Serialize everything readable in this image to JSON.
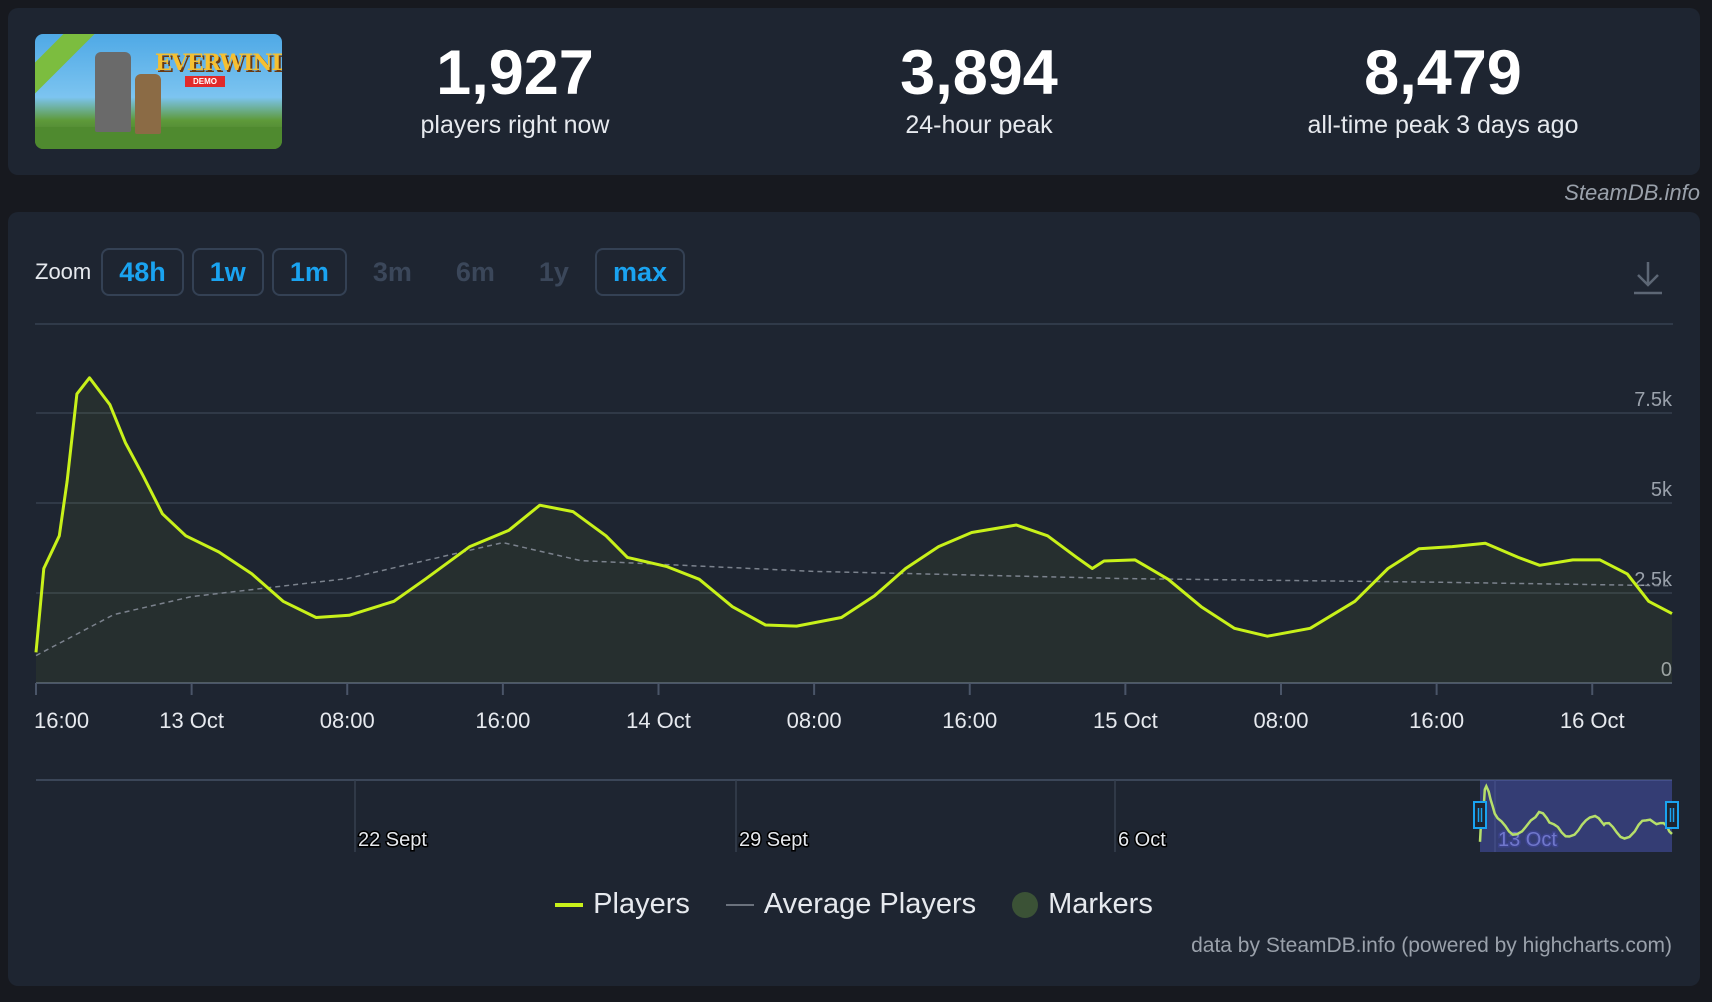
{
  "game": {
    "logo_text": "EVERWIND",
    "logo_badge": "DEMO"
  },
  "stats": [
    {
      "value": "1,927",
      "label": "players right now"
    },
    {
      "value": "3,894",
      "label": "24-hour peak"
    },
    {
      "value": "8,479",
      "label": "all-time peak 3 days ago"
    }
  ],
  "credit_top": "SteamDB.info",
  "zoom": {
    "label": "Zoom",
    "buttons": [
      {
        "label": "48h",
        "enabled": true
      },
      {
        "label": "1w",
        "enabled": true
      },
      {
        "label": "1m",
        "enabled": true
      },
      {
        "label": "3m",
        "enabled": false
      },
      {
        "label": "6m",
        "enabled": false
      },
      {
        "label": "1y",
        "enabled": false
      },
      {
        "label": "max",
        "enabled": true
      }
    ]
  },
  "icons": {
    "download": "download-icon"
  },
  "colors": {
    "players": "#c8f11a",
    "average": "#8a919c",
    "markers": "#3b5236",
    "accent": "#1aa3f0"
  },
  "chart_data": {
    "type": "line",
    "x_unit": "hours since 12 Oct 16:00",
    "xlim": [
      0,
      84.1
    ],
    "ylim": [
      0,
      8500
    ],
    "y_ticks": [
      {
        "v": 0,
        "label": "0"
      },
      {
        "v": 2500,
        "label": "2.5k"
      },
      {
        "v": 5000,
        "label": "5k"
      },
      {
        "v": 7500,
        "label": "7.5k"
      }
    ],
    "x_ticks": [
      {
        "h": 0,
        "label": "16:00"
      },
      {
        "h": 8,
        "label": "13 Oct"
      },
      {
        "h": 16,
        "label": "08:00"
      },
      {
        "h": 24,
        "label": "16:00"
      },
      {
        "h": 32,
        "label": "14 Oct"
      },
      {
        "h": 40,
        "label": "08:00"
      },
      {
        "h": 48,
        "label": "16:00"
      },
      {
        "h": 56,
        "label": "15 Oct"
      },
      {
        "h": 64,
        "label": "08:00"
      },
      {
        "h": 72,
        "label": "16:00"
      },
      {
        "h": 80,
        "label": "16 Oct"
      }
    ],
    "series": [
      {
        "name": "Players",
        "points": [
          [
            0,
            850
          ],
          [
            0.4,
            3180
          ],
          [
            1.2,
            4090
          ],
          [
            1.6,
            5600
          ],
          [
            2.1,
            8030
          ],
          [
            2.75,
            8479
          ],
          [
            3.8,
            7730
          ],
          [
            4.6,
            6670
          ],
          [
            5.5,
            5760
          ],
          [
            6.5,
            4700
          ],
          [
            7.7,
            4090
          ],
          [
            9.4,
            3640
          ],
          [
            11.1,
            3030
          ],
          [
            12.7,
            2270
          ],
          [
            14.4,
            1820
          ],
          [
            16.1,
            1880
          ],
          [
            18.4,
            2270
          ],
          [
            20,
            2880
          ],
          [
            22.3,
            3790
          ],
          [
            24.3,
            4240
          ],
          [
            25.9,
            4940
          ],
          [
            27.6,
            4760
          ],
          [
            29.3,
            4090
          ],
          [
            30.4,
            3490
          ],
          [
            32.4,
            3240
          ],
          [
            34.1,
            2880
          ],
          [
            35.8,
            2120
          ],
          [
            37.5,
            1610
          ],
          [
            39.1,
            1580
          ],
          [
            41.4,
            1820
          ],
          [
            43.1,
            2420
          ],
          [
            44.7,
            3180
          ],
          [
            46.4,
            3790
          ],
          [
            48.1,
            4180
          ],
          [
            50.4,
            4390
          ],
          [
            52,
            4090
          ],
          [
            53.5,
            3490
          ],
          [
            54.3,
            3180
          ],
          [
            54.9,
            3390
          ],
          [
            56.5,
            3420
          ],
          [
            58.2,
            2880
          ],
          [
            59.9,
            2120
          ],
          [
            61.6,
            1520
          ],
          [
            63.3,
            1300
          ],
          [
            65.5,
            1520
          ],
          [
            67.8,
            2270
          ],
          [
            69.5,
            3180
          ],
          [
            71.1,
            3730
          ],
          [
            72.8,
            3790
          ],
          [
            74.5,
            3880
          ],
          [
            76.2,
            3490
          ],
          [
            77.3,
            3270
          ],
          [
            79,
            3420
          ],
          [
            80.4,
            3420
          ],
          [
            81.8,
            3030
          ],
          [
            82.9,
            2270
          ],
          [
            84.1,
            1927
          ]
        ]
      },
      {
        "name": "Average Players",
        "points": [
          [
            0,
            760
          ],
          [
            4,
            1900
          ],
          [
            8,
            2400
          ],
          [
            16,
            2900
          ],
          [
            24,
            3900
          ],
          [
            28,
            3400
          ],
          [
            40,
            3100
          ],
          [
            56,
            2900
          ],
          [
            72,
            2800
          ],
          [
            84.1,
            2700
          ]
        ]
      }
    ],
    "legend": [
      "Players",
      "Average Players",
      "Markers"
    ],
    "navigator": {
      "labels": [
        "22 Sept",
        "29 Sept",
        "6 Oct",
        "13 Oct"
      ]
    }
  },
  "credits": "data by SteamDB.info (powered by highcharts.com)"
}
